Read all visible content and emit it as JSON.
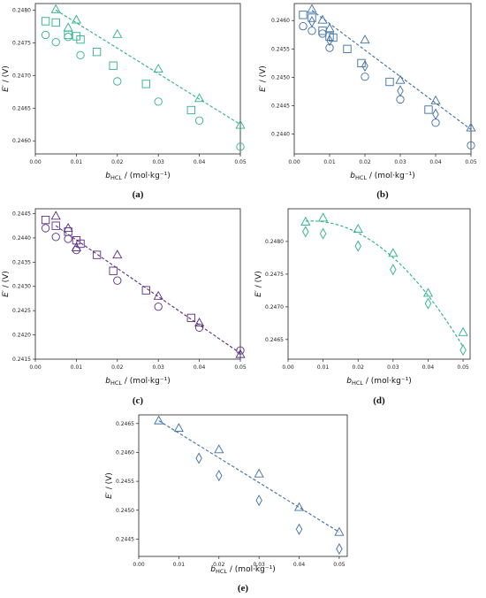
{
  "panels": [
    {
      "label": "(a)",
      "color": "#2bb08a",
      "xlabel": "b_HCL / (mol·kg⁻¹)",
      "ylabel": "E′ / (V)",
      "xlim": [
        0.0,
        0.05
      ],
      "ylim": [
        0.2458,
        0.2481
      ],
      "xticks": [
        "0.00",
        "0.01",
        "0.02",
        "0.03",
        "0.04",
        "0.05"
      ],
      "yticks": [
        "0.2460",
        "0.2465",
        "0.2470",
        "0.2475",
        "0.2480"
      ],
      "fit": {
        "type": "line",
        "x": [
          0.005,
          0.05
        ],
        "y": [
          0.248,
          0.24625
        ]
      },
      "series": [
        {
          "marker": "circle",
          "x": [
            0.0025,
            0.005,
            0.008,
            0.011,
            0.02,
            0.03,
            0.04,
            0.05
          ],
          "y": [
            0.24762,
            0.24751,
            0.24759,
            0.24731,
            0.24691,
            0.2466,
            0.24631,
            0.24591
          ]
        },
        {
          "marker": "square",
          "x": [
            0.0025,
            0.005,
            0.008,
            0.01,
            0.011,
            0.015,
            0.019,
            0.027,
            0.038
          ],
          "y": [
            0.24783,
            0.24781,
            0.24762,
            0.2476,
            0.24755,
            0.24736,
            0.24715,
            0.24687,
            0.24647
          ]
        },
        {
          "marker": "triangle",
          "x": [
            0.005,
            0.008,
            0.01,
            0.02,
            0.03,
            0.04,
            0.05
          ],
          "y": [
            0.24801,
            0.24773,
            0.24785,
            0.24763,
            0.2471,
            0.24665,
            0.24624
          ]
        }
      ]
    },
    {
      "label": "(b)",
      "color": "#3d6ea3",
      "xlabel": "b_HCL / (mol·kg⁻¹)",
      "ylabel": "E′ / (V)",
      "xlim": [
        0.0,
        0.05
      ],
      "ylim": [
        0.24365,
        0.2463
      ],
      "xticks": [
        "0.00",
        "0.01",
        "0.02",
        "0.03",
        "0.04",
        "0.05"
      ],
      "yticks": [
        "0.2440",
        "0.2445",
        "0.2450",
        "0.2455",
        "0.2460"
      ],
      "fit": {
        "type": "line",
        "x": [
          0.005,
          0.05
        ],
        "y": [
          0.24618,
          0.24408
        ]
      },
      "series": [
        {
          "marker": "circle",
          "x": [
            0.0025,
            0.005,
            0.008,
            0.01,
            0.02,
            0.03,
            0.04,
            0.05
          ],
          "y": [
            0.2459,
            0.24582,
            0.24577,
            0.24552,
            0.24501,
            0.24461,
            0.2442,
            0.2438
          ]
        },
        {
          "marker": "square",
          "x": [
            0.0025,
            0.005,
            0.008,
            0.01,
            0.011,
            0.015,
            0.019,
            0.027,
            0.038
          ],
          "y": [
            0.2461,
            0.24605,
            0.24582,
            0.24572,
            0.2457,
            0.2455,
            0.24525,
            0.24492,
            0.24443
          ]
        },
        {
          "marker": "triangle",
          "x": [
            0.005,
            0.008,
            0.01,
            0.02,
            0.03,
            0.04,
            0.05
          ],
          "y": [
            0.2462,
            0.24601,
            0.24586,
            0.24566,
            0.24495,
            0.24459,
            0.24411
          ]
        },
        {
          "marker": "diamond",
          "x": [
            0.005,
            0.01,
            0.02,
            0.03,
            0.04
          ],
          "y": [
            0.24598,
            0.24565,
            0.2452,
            0.24476,
            0.24435
          ]
        }
      ]
    },
    {
      "label": "(c)",
      "color": "#5a2d82",
      "xlabel": "b_HCL / (mol·kg⁻¹)",
      "ylabel": "E′ / (V)",
      "xlim": [
        0.0,
        0.05
      ],
      "ylim": [
        0.2415,
        0.2446
      ],
      "xticks": [
        "0.00",
        "0.01",
        "0.02",
        "0.03",
        "0.04",
        "0.05"
      ],
      "yticks": [
        "0.2415",
        "0.2420",
        "0.2425",
        "0.2430",
        "0.2435",
        "0.2440",
        "0.2445"
      ],
      "fit": {
        "type": "line",
        "x": [
          0.005,
          0.05
        ],
        "y": [
          0.24425,
          0.24162
        ]
      },
      "series": [
        {
          "marker": "circle",
          "x": [
            0.0025,
            0.005,
            0.008,
            0.01,
            0.02,
            0.03,
            0.04,
            0.05
          ],
          "y": [
            0.2442,
            0.24402,
            0.24398,
            0.24375,
            0.24312,
            0.24258,
            0.24215,
            0.24168
          ]
        },
        {
          "marker": "square",
          "x": [
            0.0025,
            0.005,
            0.008,
            0.01,
            0.011,
            0.015,
            0.019,
            0.027,
            0.038
          ],
          "y": [
            0.24437,
            0.24425,
            0.24413,
            0.24395,
            0.24388,
            0.24365,
            0.24332,
            0.24292,
            0.24235
          ]
        },
        {
          "marker": "triangle",
          "x": [
            0.005,
            0.008,
            0.01,
            0.02,
            0.03,
            0.04,
            0.05
          ],
          "y": [
            0.24445,
            0.2442,
            0.2438,
            0.24365,
            0.2428,
            0.24225,
            0.2416
          ]
        }
      ]
    },
    {
      "label": "(d)",
      "color": "#2bb08a",
      "xlabel": "b_HCL / (mol·kg⁻¹)",
      "ylabel": "E′ / (V)",
      "xlim": [
        0.0,
        0.052
      ],
      "ylim": [
        0.2462,
        0.2485
      ],
      "xticks": [
        "0.00",
        "0.01",
        "0.02",
        "0.03",
        "0.04",
        "0.05"
      ],
      "yticks": [
        "0.2465",
        "0.2470",
        "0.2475",
        "0.2480"
      ],
      "fit": {
        "type": "quadratic",
        "coef": [
          0.24827,
          0.0134,
          -1.02
        ],
        "xrange": [
          0.005,
          0.05
        ]
      },
      "series": [
        {
          "marker": "triangle",
          "x": [
            0.005,
            0.01,
            0.02,
            0.03,
            0.04,
            0.05
          ],
          "y": [
            0.2483,
            0.24836,
            0.24819,
            0.24782,
            0.24721,
            0.24661
          ]
        },
        {
          "marker": "diamond",
          "x": [
            0.005,
            0.01,
            0.02,
            0.03,
            0.04,
            0.05
          ],
          "y": [
            0.24815,
            0.24812,
            0.24793,
            0.24757,
            0.24705,
            0.24634
          ]
        }
      ]
    },
    {
      "label": "(e)",
      "color": "#3d6ea3",
      "xlabel": "b_HCL / (mol·kg⁻¹)",
      "ylabel": "E′ / (V)",
      "xlim": [
        0.0,
        0.052
      ],
      "ylim": [
        0.2442,
        0.24665
      ],
      "xticks": [
        "0.00",
        "0.01",
        "0.02",
        "0.03",
        "0.04",
        "0.05"
      ],
      "yticks": [
        "0.2445",
        "0.2450",
        "0.2455",
        "0.2460",
        "0.2465"
      ],
      "fit": {
        "type": "line",
        "x": [
          0.005,
          0.05
        ],
        "y": [
          0.24655,
          0.24462
        ]
      },
      "series": [
        {
          "marker": "triangle",
          "x": [
            0.005,
            0.01,
            0.02,
            0.03,
            0.04,
            0.05
          ],
          "y": [
            0.24655,
            0.24642,
            0.24605,
            0.24563,
            0.24505,
            0.24462
          ]
        },
        {
          "marker": "diamond",
          "x": [
            0.015,
            0.02,
            0.03,
            0.04,
            0.05
          ],
          "y": [
            0.2459,
            0.2456,
            0.24517,
            0.24467,
            0.24433
          ]
        }
      ]
    }
  ]
}
